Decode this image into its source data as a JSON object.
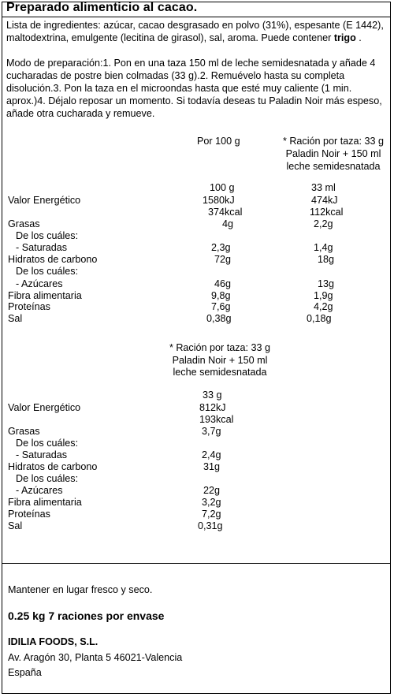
{
  "title": "Preparado alimenticio al cacao.",
  "ingredients": {
    "text": "Lista de ingredientes: azúcar, cacao desgrasado en polvo (31%), espesante (E 1442), maltodextrina, emulgente (lecitina de girasol), sal, aroma. Puede contener",
    "allergen": "trigo",
    "end": " ."
  },
  "preparation": "Modo de preparación:1. Pon en una taza 150 ml de leche semidesnatada y añade 4 cucharadas de postre bien colmadas (33 g).2. Remuévelo hasta su completa disolución.3. Pon la taza en el microondas hasta que esté muy caliente (1 min. aprox.)4. Déjalo reposar un momento. Si todavía deseas tu Paladin Noir más espeso, añade otra cucharada y remueve.",
  "table1": {
    "col1_header": "Por 100 g",
    "col2_header": [
      "* Ración por taza: 33 g",
      "Paladin Noir + 150 ml",
      "leche semidesnatada"
    ],
    "col1_qty": "100 g",
    "col2_qty": "33 ml",
    "energy": {
      "label": "Valor  Energético",
      "c1_kj": "1580kJ",
      "c1_kcal": "374kcal",
      "c2_kj": "474kJ",
      "c2_kcal": "112kcal"
    },
    "fat": {
      "label": "Grasas",
      "c1": "4g",
      "c2": "2,2g"
    },
    "fat_sub": "De los cuáles:",
    "saturated": {
      "label": "-  Saturadas",
      "c1": "2,3g",
      "c2": "1,4g"
    },
    "carbs": {
      "label": "Hidratos  de carbono",
      "c1": "72g",
      "c2": "18g"
    },
    "carbs_sub": "De los cuáles:",
    "sugars": {
      "label": "-  Azúcares",
      "c1": "46g",
      "c2": "13g"
    },
    "fiber": {
      "label": "Fibra  alimentaria",
      "c1": "9,8g",
      "c2": "1,9g"
    },
    "protein": {
      "label": "Proteínas",
      "c1": "7,6g",
      "c2": "4,2g"
    },
    "salt": {
      "label": "Sal",
      "c1": "0,38g",
      "c2": "0,18g"
    }
  },
  "table2": {
    "header": [
      "* Ración por taza: 33 g",
      "Paladin Noir + 150 ml",
      "leche semidesnatada"
    ],
    "qty": "33 g",
    "energy": {
      "label": "Valor  Energético",
      "kj": "812kJ",
      "kcal": "193kcal"
    },
    "fat": {
      "label": "Grasas",
      "v": "3,7g"
    },
    "fat_sub": "De los cuáles:",
    "saturated": {
      "label": "-  Saturadas",
      "v": "2,4g"
    },
    "carbs": {
      "label": "Hidratos  de carbono",
      "v": "31g"
    },
    "carbs_sub": "De los cuáles:",
    "sugars": {
      "label": "-  Azúcares",
      "v": "22g"
    },
    "fiber": {
      "label": "Fibra  alimentaria",
      "v": "3,2g"
    },
    "protein": {
      "label": "Proteínas",
      "v": "7,2g"
    },
    "salt": {
      "label": "Sal",
      "v": "0,31g"
    }
  },
  "storage": "Mantener en lugar fresco y seco.",
  "net": "0.25 kg  7 raciones por envase",
  "company": {
    "name": "IDILIA FOODS, S.L.",
    "address": "Av. Aragón 30, Planta 5 46021-Valencia",
    "country": "España"
  }
}
